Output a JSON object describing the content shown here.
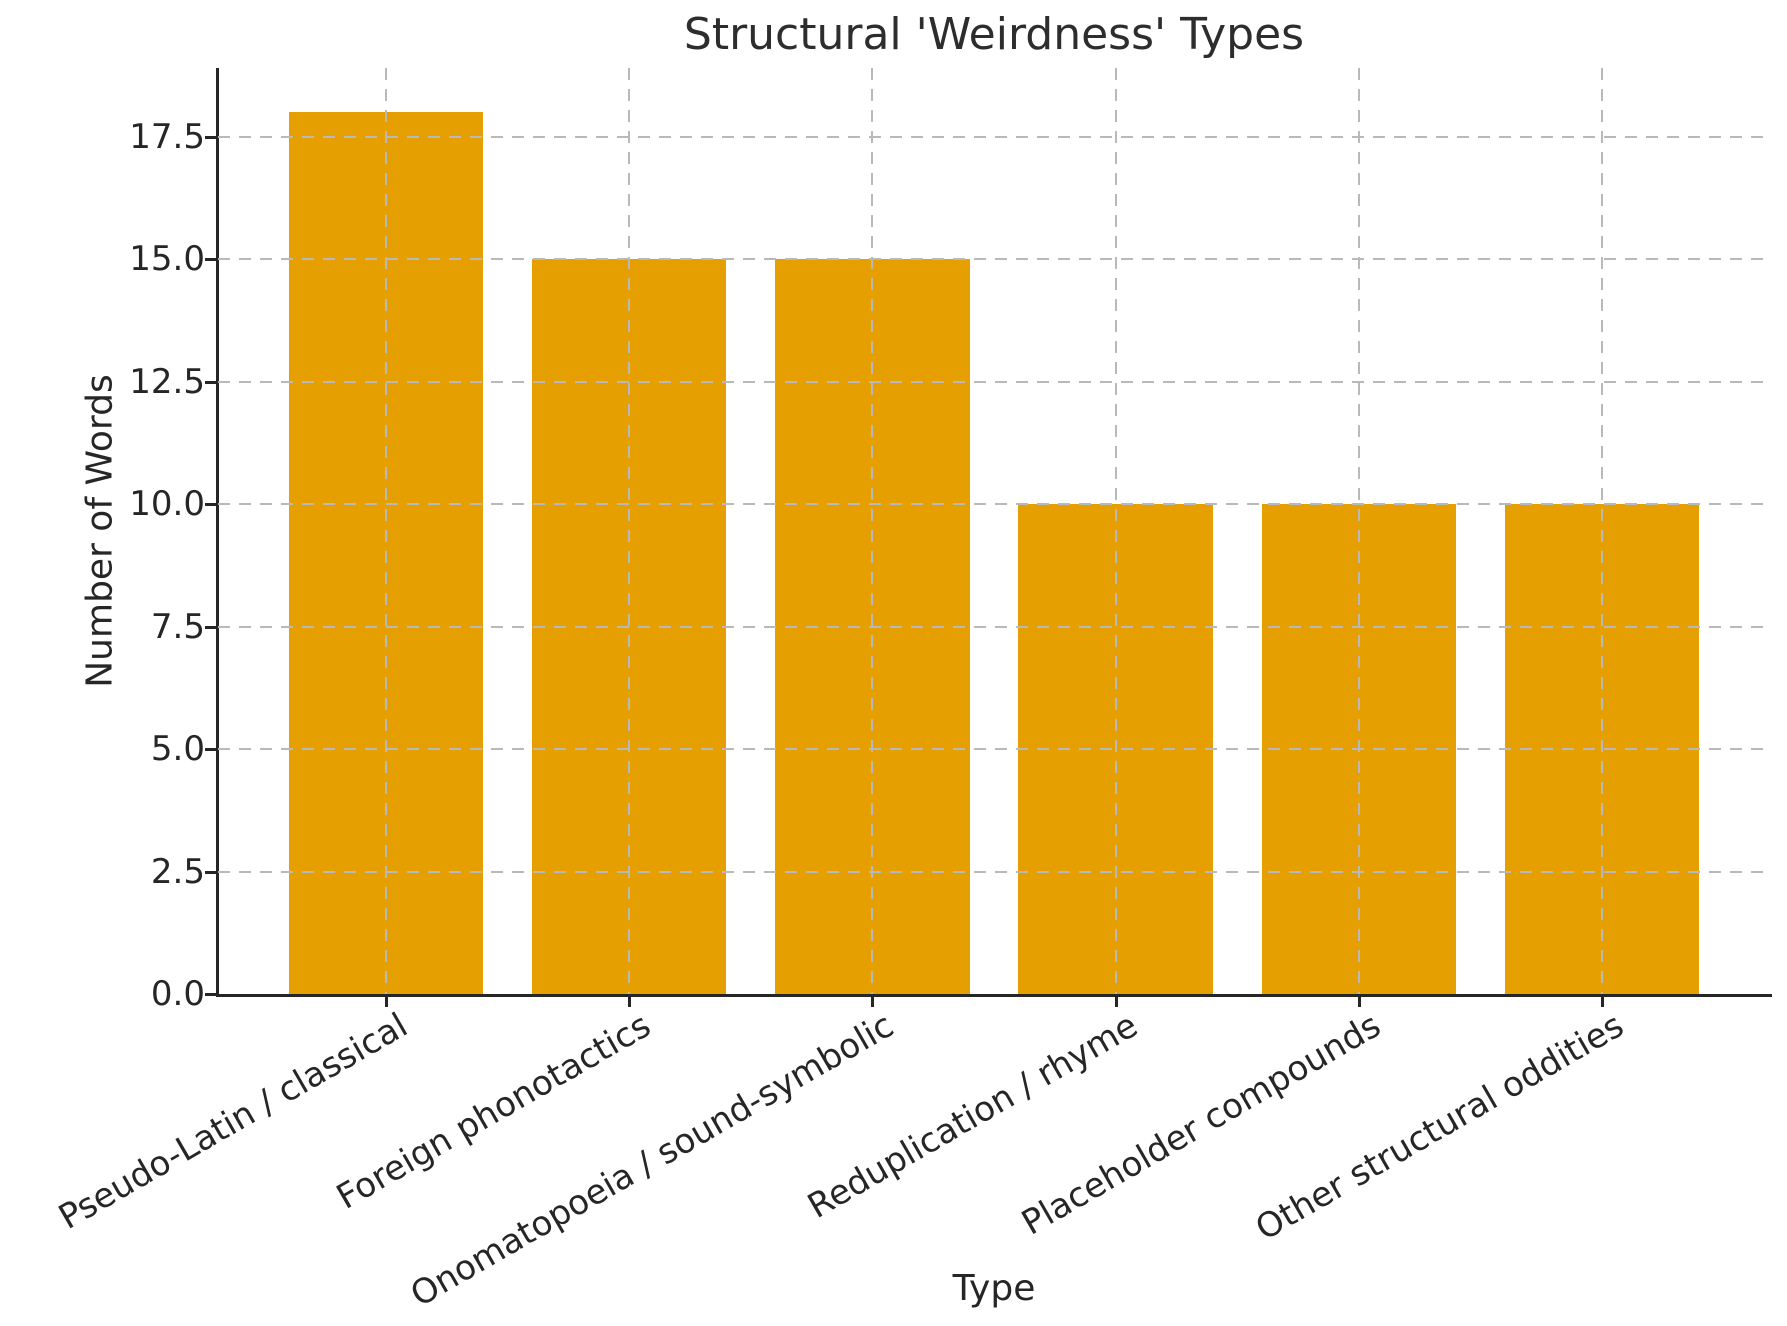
{
  "chart_data": {
    "type": "bar",
    "title": "Structural 'Weirdness' Types",
    "xlabel": "Type",
    "ylabel": "Number of Words",
    "categories": [
      "Pseudo-Latin / classical",
      "Foreign phonotactics",
      "Onomatopoeia / sound-symbolic",
      "Reduplication / rhyme",
      "Placeholder compounds",
      "Other structural oddities"
    ],
    "values": [
      18,
      15,
      15,
      10,
      10,
      10
    ],
    "yticks": [
      0.0,
      2.5,
      5.0,
      7.5,
      10.0,
      12.5,
      15.0,
      17.5
    ],
    "ylim": [
      0,
      18.9
    ],
    "bar_color": "#E69F00",
    "grid_color": "#b9b9b9",
    "grid_style": "dashed",
    "axis_color": "#262626",
    "background": "#ffffff",
    "tick_label_rotation_deg": 30,
    "legend": "none"
  }
}
